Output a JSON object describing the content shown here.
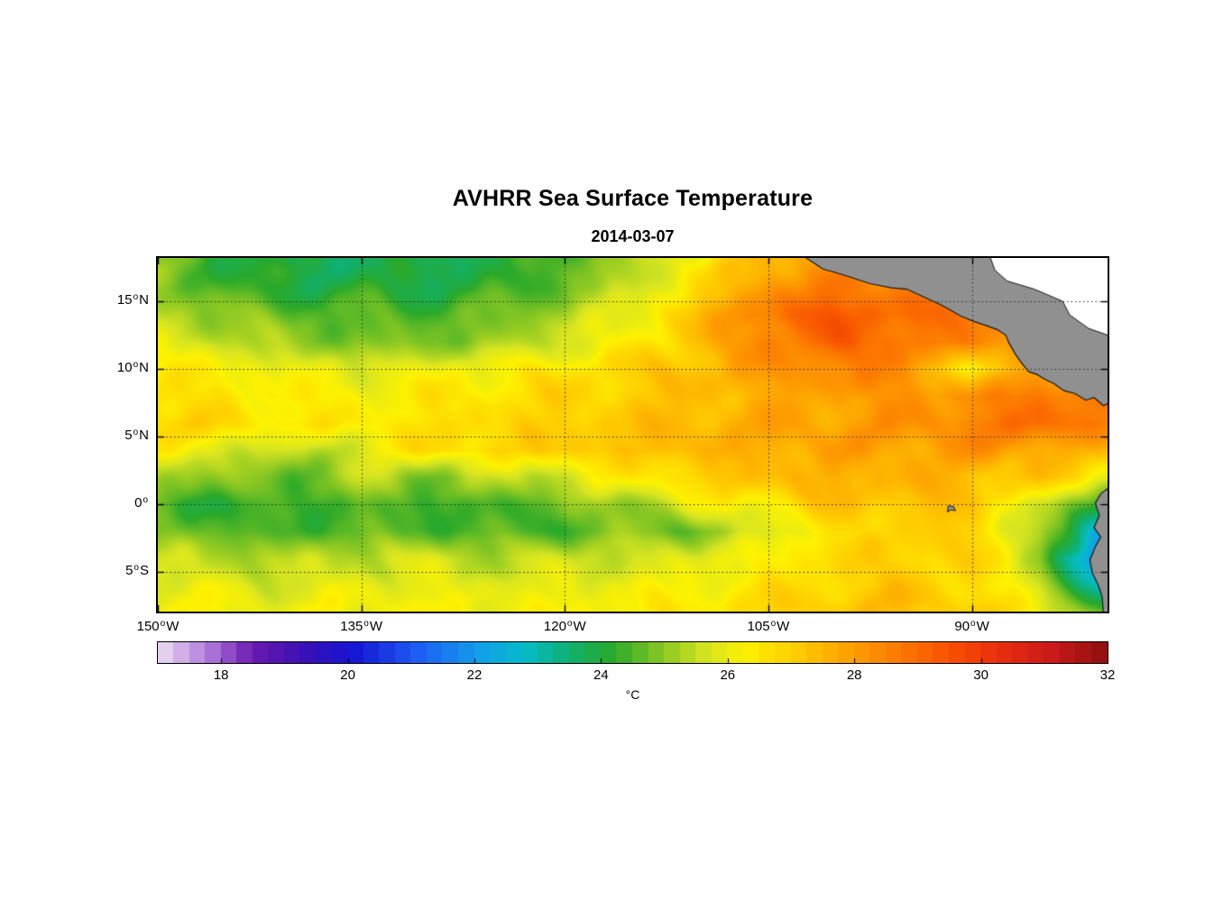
{
  "figure": {
    "title": "AVHRR Sea Surface Temperature",
    "subtitle": "2014-03-07"
  },
  "chart_data": {
    "type": "heatmap",
    "title": "AVHRR Sea Surface Temperature",
    "subtitle": "2014-03-07",
    "map_bounds": {
      "lon_min": -150,
      "lon_max": -80,
      "lat_min": -7.9,
      "lat_max": 18.2
    },
    "x_ticks": [
      {
        "label": "150",
        "dir": "W",
        "lon": -150
      },
      {
        "label": "135",
        "dir": "W",
        "lon": -135
      },
      {
        "label": "120",
        "dir": "W",
        "lon": -120
      },
      {
        "label": "105",
        "dir": "W",
        "lon": -105
      },
      {
        "label": "90",
        "dir": "W",
        "lon": -90
      }
    ],
    "y_ticks": [
      {
        "label": "15",
        "dir": "N",
        "lat": 15
      },
      {
        "label": "10",
        "dir": "N",
        "lat": 10
      },
      {
        "label": "5",
        "dir": "N",
        "lat": 5
      },
      {
        "label": "0",
        "dir": "",
        "lat": 0
      },
      {
        "label": "5",
        "dir": "S",
        "lat": -5
      }
    ],
    "gridline_lons": [
      -135,
      -120,
      -105,
      -90
    ],
    "gridline_lats": [
      15,
      10,
      5,
      0,
      -5
    ],
    "grid_lons": [
      -150,
      -145,
      -140,
      -135,
      -130,
      -125,
      -120,
      -115,
      -110,
      -105,
      -100,
      -95,
      -90,
      -85,
      -80
    ],
    "grid_lats": [
      18,
      16,
      14,
      12,
      10,
      8,
      6,
      4,
      2,
      0,
      -2,
      -4,
      -6,
      -8
    ],
    "sst_grid_degC": [
      [
        24.8,
        24.2,
        23.7,
        23.8,
        23.7,
        24.0,
        24.5,
        25.3,
        26.3,
        27.6,
        28.0,
        28.0,
        28.0,
        28.0,
        28.0
      ],
      [
        25.0,
        24.5,
        24.0,
        24.2,
        24.0,
        24.3,
        24.8,
        25.6,
        26.8,
        28.2,
        28.8,
        28.6,
        28.5,
        28.5,
        28.5
      ],
      [
        25.4,
        25.0,
        24.6,
        24.5,
        24.4,
        24.7,
        25.3,
        26.0,
        27.3,
        28.8,
        29.3,
        29.0,
        28.6,
        28.5,
        28.5
      ],
      [
        26.0,
        25.6,
        25.1,
        24.9,
        24.9,
        25.2,
        25.8,
        26.4,
        27.4,
        28.6,
        29.2,
        28.9,
        28.4,
        28.4,
        28.5
      ],
      [
        26.5,
        26.2,
        26.0,
        25.8,
        26.0,
        26.2,
        26.5,
        26.9,
        27.4,
        28.0,
        28.5,
        28.3,
        26.2,
        28.2,
        28.5
      ],
      [
        26.8,
        26.6,
        26.4,
        26.3,
        26.5,
        26.7,
        26.9,
        27.1,
        27.4,
        27.7,
        28.0,
        28.2,
        28.3,
        28.8,
        28.8
      ],
      [
        26.9,
        26.7,
        26.5,
        26.4,
        26.6,
        26.8,
        27.0,
        27.2,
        27.5,
        27.7,
        27.9,
        28.1,
        28.5,
        29.0,
        28.6
      ],
      [
        26.3,
        26.0,
        25.2,
        26.0,
        26.7,
        26.9,
        27.1,
        27.3,
        27.5,
        27.7,
        27.9,
        27.9,
        28.1,
        28.0,
        27.2
      ],
      [
        25.2,
        25.0,
        24.6,
        25.4,
        25.0,
        25.3,
        25.8,
        26.4,
        27.0,
        27.4,
        27.6,
        27.6,
        27.4,
        27.1,
        26.3
      ],
      [
        24.4,
        24.2,
        24.3,
        24.6,
        24.3,
        24.4,
        24.8,
        25.2,
        26.0,
        26.5,
        27.2,
        27.3,
        27.2,
        25.6,
        24.0
      ],
      [
        24.9,
        24.6,
        24.4,
        24.6,
        24.6,
        24.4,
        24.6,
        24.9,
        24.9,
        25.8,
        26.7,
        27.0,
        27.0,
        25.2,
        22.0
      ],
      [
        25.6,
        25.4,
        25.3,
        25.6,
        25.6,
        25.4,
        25.6,
        25.6,
        25.9,
        26.3,
        26.8,
        27.0,
        26.9,
        25.3,
        20.5
      ],
      [
        26.0,
        25.9,
        25.8,
        26.0,
        26.0,
        25.9,
        26.0,
        26.1,
        26.3,
        26.6,
        27.0,
        27.2,
        26.9,
        25.6,
        22.5
      ],
      [
        26.2,
        26.1,
        26.0,
        26.2,
        26.2,
        26.1,
        26.2,
        26.3,
        26.5,
        26.8,
        27.2,
        27.3,
        27.0,
        26.3,
        24.3
      ]
    ],
    "colormap": [
      {
        "t": 17.0,
        "c": "#ecdff2"
      },
      {
        "t": 17.8,
        "c": "#b07adb"
      },
      {
        "t": 18.5,
        "c": "#6a1ab0"
      },
      {
        "t": 19.3,
        "c": "#3a10b4"
      },
      {
        "t": 20.1,
        "c": "#1616d2"
      },
      {
        "t": 21.1,
        "c": "#1e5cf5"
      },
      {
        "t": 22.1,
        "c": "#12a0e8"
      },
      {
        "t": 22.8,
        "c": "#04bcc8"
      },
      {
        "t": 23.5,
        "c": "#10b070"
      },
      {
        "t": 24.2,
        "c": "#2aa92a"
      },
      {
        "t": 25.0,
        "c": "#8cc822"
      },
      {
        "t": 25.7,
        "c": "#d8e520"
      },
      {
        "t": 26.3,
        "c": "#fdf200"
      },
      {
        "t": 27.1,
        "c": "#fecb00"
      },
      {
        "t": 27.9,
        "c": "#fda200"
      },
      {
        "t": 28.7,
        "c": "#fc7a00"
      },
      {
        "t": 29.5,
        "c": "#f85200"
      },
      {
        "t": 30.3,
        "c": "#e92d10"
      },
      {
        "t": 31.1,
        "c": "#cc1a1a"
      },
      {
        "t": 32.0,
        "c": "#8e0f10"
      }
    ],
    "colorbar": {
      "min": 17,
      "max": 32,
      "tick_values": [
        18,
        20,
        22,
        24,
        26,
        28,
        30,
        32
      ],
      "unit": "°C"
    },
    "land_color": "#909090",
    "coast_color": "#1a1a1a",
    "no_data_color": "#ffffff",
    "land_polygons": {
      "central_america": [
        [
          -102.5,
          18.4
        ],
        [
          -101.0,
          17.4
        ],
        [
          -99.3,
          16.9
        ],
        [
          -97.5,
          16.3
        ],
        [
          -95.9,
          16.0
        ],
        [
          -94.8,
          15.9
        ],
        [
          -93.5,
          15.3
        ],
        [
          -92.2,
          14.7
        ],
        [
          -90.8,
          13.9
        ],
        [
          -89.8,
          13.5
        ],
        [
          -88.9,
          13.2
        ],
        [
          -88.1,
          12.9
        ],
        [
          -87.5,
          12.5
        ],
        [
          -87.3,
          12.0
        ],
        [
          -86.8,
          11.1
        ],
        [
          -86.3,
          10.4
        ],
        [
          -85.8,
          9.8
        ],
        [
          -85.2,
          9.6
        ],
        [
          -84.7,
          9.3
        ],
        [
          -83.9,
          8.9
        ],
        [
          -83.2,
          8.4
        ],
        [
          -82.4,
          8.2
        ],
        [
          -81.6,
          7.7
        ],
        [
          -81.0,
          7.9
        ],
        [
          -80.3,
          7.3
        ],
        [
          -79.7,
          7.6
        ],
        [
          -79.7,
          18.4
        ]
      ],
      "caribbean_no_data": [
        [
          -88.7,
          18.4
        ],
        [
          -79.7,
          18.4
        ],
        [
          -79.7,
          12.4
        ],
        [
          -81.4,
          13.0
        ],
        [
          -82.8,
          14.0
        ],
        [
          -83.3,
          15.0
        ],
        [
          -85.4,
          15.9
        ],
        [
          -87.4,
          16.5
        ],
        [
          -88.3,
          17.3
        ]
      ],
      "south_america": [
        [
          -79.7,
          1.4
        ],
        [
          -80.5,
          0.8
        ],
        [
          -80.9,
          0.1
        ],
        [
          -80.6,
          -0.8
        ],
        [
          -81.0,
          -1.7
        ],
        [
          -80.5,
          -2.4
        ],
        [
          -80.9,
          -3.1
        ],
        [
          -81.3,
          -4.1
        ],
        [
          -81.1,
          -5.1
        ],
        [
          -80.7,
          -5.9
        ],
        [
          -80.4,
          -6.8
        ],
        [
          -80.3,
          -8.0
        ],
        [
          -79.7,
          -8.0
        ]
      ],
      "galapagos": [
        [
          -91.75,
          -0.1
        ],
        [
          -91.35,
          -0.15
        ],
        [
          -91.2,
          -0.45
        ],
        [
          -91.55,
          -0.4
        ],
        [
          -91.8,
          -0.55
        ]
      ]
    }
  }
}
